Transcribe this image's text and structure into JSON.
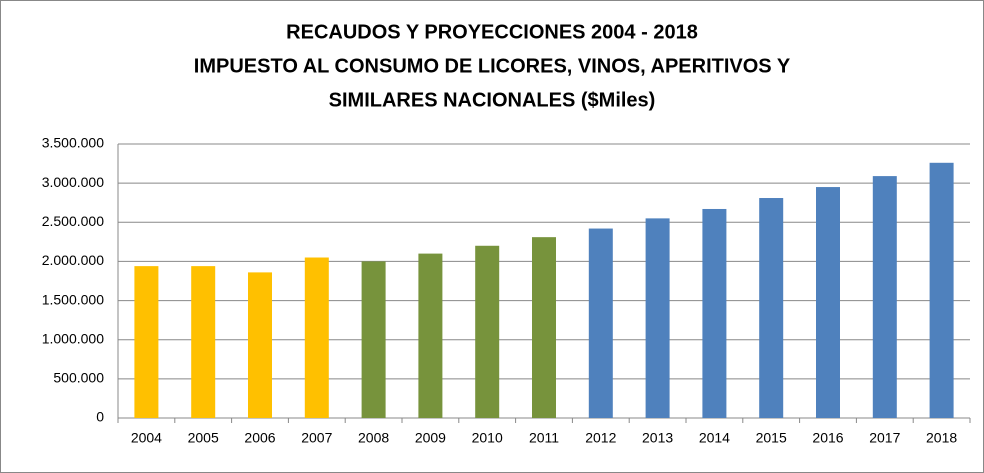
{
  "chart_data": {
    "type": "bar",
    "title": [
      "RECAUDOS Y PROYECCIONES 2004 - 2018",
      "IMPUESTO AL CONSUMO DE LICORES, VINOS, APERITIVOS Y",
      "SIMILARES NACIONALES  ($Miles)"
    ],
    "categories": [
      "2004",
      "2005",
      "2006",
      "2007",
      "2008",
      "2009",
      "2010",
      "2011",
      "2012",
      "2013",
      "2014",
      "2015",
      "2016",
      "2017",
      "2018"
    ],
    "values": [
      1940000,
      1940000,
      1860000,
      2050000,
      2000000,
      2100000,
      2200000,
      2310000,
      2420000,
      2550000,
      2670000,
      2810000,
      2950000,
      3090000,
      3260000
    ],
    "colors": [
      "#ffc000",
      "#ffc000",
      "#ffc000",
      "#ffc000",
      "#77933c",
      "#77933c",
      "#77933c",
      "#77933c",
      "#4f81bd",
      "#4f81bd",
      "#4f81bd",
      "#4f81bd",
      "#4f81bd",
      "#4f81bd",
      "#4f81bd"
    ],
    "ylim": [
      0,
      3500000
    ],
    "yticks": [
      0,
      {
        "value": 500000,
        "label": "500.000"
      },
      {
        "value": 1000000,
        "label": "1.000.000"
      },
      {
        "value": 1500000,
        "label": "1.500.000"
      },
      {
        "value": 2000000,
        "label": "2.000.000"
      },
      {
        "value": 2500000,
        "label": "2.500.000"
      },
      {
        "value": 3000000,
        "label": "3.000.000"
      },
      {
        "value": 3500000,
        "label": "3.500.000"
      }
    ],
    "grid": true
  }
}
